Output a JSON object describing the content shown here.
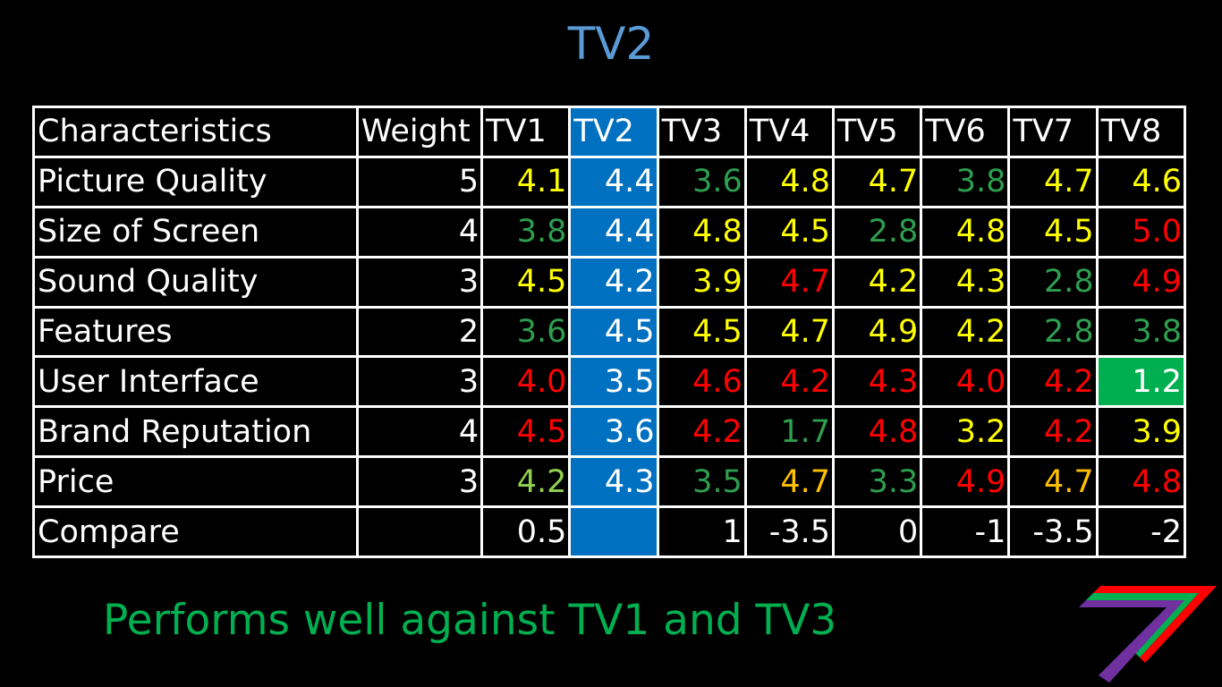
{
  "title": "TV2",
  "colors": {
    "title": "#5b9bd5",
    "highlight": "#0070c0",
    "green": "#00b050",
    "green_dark": "#2e9e4f",
    "yellow": "#ffff00",
    "red": "#ff0000",
    "orange": "#ffc000",
    "light_green": "#92d050",
    "white": "#ffffff"
  },
  "table": {
    "headers": [
      "Characteristics",
      "Weight",
      "TV1",
      "TV2",
      "TV3",
      "TV4",
      "TV5",
      "TV6",
      "TV7",
      "TV8"
    ],
    "highlight_column": 3,
    "rows": [
      {
        "label": "Picture Quality",
        "weight": "5",
        "cells": [
          {
            "v": "4.1",
            "c": "#ffff00"
          },
          {
            "v": "4.4",
            "c": "#ffffff"
          },
          {
            "v": "3.6",
            "c": "#2e9e4f"
          },
          {
            "v": "4.8",
            "c": "#ffff00"
          },
          {
            "v": "4.7",
            "c": "#ffff00"
          },
          {
            "v": "3.8",
            "c": "#2e9e4f"
          },
          {
            "v": "4.7",
            "c": "#ffff00"
          },
          {
            "v": "4.6",
            "c": "#ffff00"
          }
        ]
      },
      {
        "label": "Size of Screen",
        "weight": "4",
        "cells": [
          {
            "v": "3.8",
            "c": "#2e9e4f"
          },
          {
            "v": "4.4",
            "c": "#ffffff"
          },
          {
            "v": "4.8",
            "c": "#ffff00"
          },
          {
            "v": "4.5",
            "c": "#ffff00"
          },
          {
            "v": "2.8",
            "c": "#2e9e4f"
          },
          {
            "v": "4.8",
            "c": "#ffff00"
          },
          {
            "v": "4.5",
            "c": "#ffff00"
          },
          {
            "v": "5.0",
            "c": "#ff0000"
          }
        ]
      },
      {
        "label": "Sound Quality",
        "weight": "3",
        "cells": [
          {
            "v": "4.5",
            "c": "#ffff00"
          },
          {
            "v": "4.2",
            "c": "#ffffff"
          },
          {
            "v": "3.9",
            "c": "#ffff00"
          },
          {
            "v": "4.7",
            "c": "#ff0000"
          },
          {
            "v": "4.2",
            "c": "#ffff00"
          },
          {
            "v": "4.3",
            "c": "#ffff00"
          },
          {
            "v": "2.8",
            "c": "#2e9e4f"
          },
          {
            "v": "4.9",
            "c": "#ff0000"
          }
        ]
      },
      {
        "label": "Features",
        "weight": "2",
        "cells": [
          {
            "v": "3.6",
            "c": "#2e9e4f"
          },
          {
            "v": "4.5",
            "c": "#ffffff"
          },
          {
            "v": "4.5",
            "c": "#ffff00"
          },
          {
            "v": "4.7",
            "c": "#ffff00"
          },
          {
            "v": "4.9",
            "c": "#ffff00"
          },
          {
            "v": "4.2",
            "c": "#ffff00"
          },
          {
            "v": "2.8",
            "c": "#2e9e4f"
          },
          {
            "v": "3.8",
            "c": "#2e9e4f"
          }
        ]
      },
      {
        "label": "User Interface",
        "weight": "3",
        "cells": [
          {
            "v": "4.0",
            "c": "#ff0000"
          },
          {
            "v": "3.5",
            "c": "#ffffff"
          },
          {
            "v": "4.6",
            "c": "#ff0000"
          },
          {
            "v": "4.2",
            "c": "#ff0000"
          },
          {
            "v": "4.3",
            "c": "#ff0000"
          },
          {
            "v": "4.0",
            "c": "#ff0000"
          },
          {
            "v": "4.2",
            "c": "#ff0000"
          },
          {
            "v": "1.2",
            "c": "#ffffff",
            "bg": "#00b050"
          }
        ]
      },
      {
        "label": "Brand Reputation",
        "weight": "4",
        "cells": [
          {
            "v": "4.5",
            "c": "#ff0000"
          },
          {
            "v": "3.6",
            "c": "#ffffff"
          },
          {
            "v": "4.2",
            "c": "#ff0000"
          },
          {
            "v": "1.7",
            "c": "#2e9e4f"
          },
          {
            "v": "4.8",
            "c": "#ff0000"
          },
          {
            "v": "3.2",
            "c": "#ffff00"
          },
          {
            "v": "4.2",
            "c": "#ff0000"
          },
          {
            "v": "3.9",
            "c": "#ffff00"
          }
        ]
      },
      {
        "label": "Price",
        "weight": "3",
        "cells": [
          {
            "v": "4.2",
            "c": "#92d050"
          },
          {
            "v": "4.3",
            "c": "#ffffff"
          },
          {
            "v": "3.5",
            "c": "#2e9e4f"
          },
          {
            "v": "4.7",
            "c": "#ffc000"
          },
          {
            "v": "3.3",
            "c": "#2e9e4f"
          },
          {
            "v": "4.9",
            "c": "#ff0000"
          },
          {
            "v": "4.7",
            "c": "#ffc000"
          },
          {
            "v": "4.8",
            "c": "#ff0000"
          }
        ]
      },
      {
        "label": "Compare",
        "weight": "",
        "cells": [
          {
            "v": "0.5",
            "c": "#ffffff"
          },
          {
            "v": "",
            "c": "#ffffff"
          },
          {
            "v": "1",
            "c": "#ffffff"
          },
          {
            "v": "-3.5",
            "c": "#ffffff"
          },
          {
            "v": "0",
            "c": "#ffffff"
          },
          {
            "v": "-1",
            "c": "#ffffff"
          },
          {
            "v": "-3.5",
            "c": "#ffffff"
          },
          {
            "v": "-2",
            "c": "#ffffff"
          }
        ]
      }
    ]
  },
  "footer": "Performs well against TV1 and TV3",
  "logo": {
    "icon": "stripe-seven-logo-icon",
    "stripe_colors": [
      "#ff0000",
      "#00b050",
      "#7030a0"
    ]
  }
}
